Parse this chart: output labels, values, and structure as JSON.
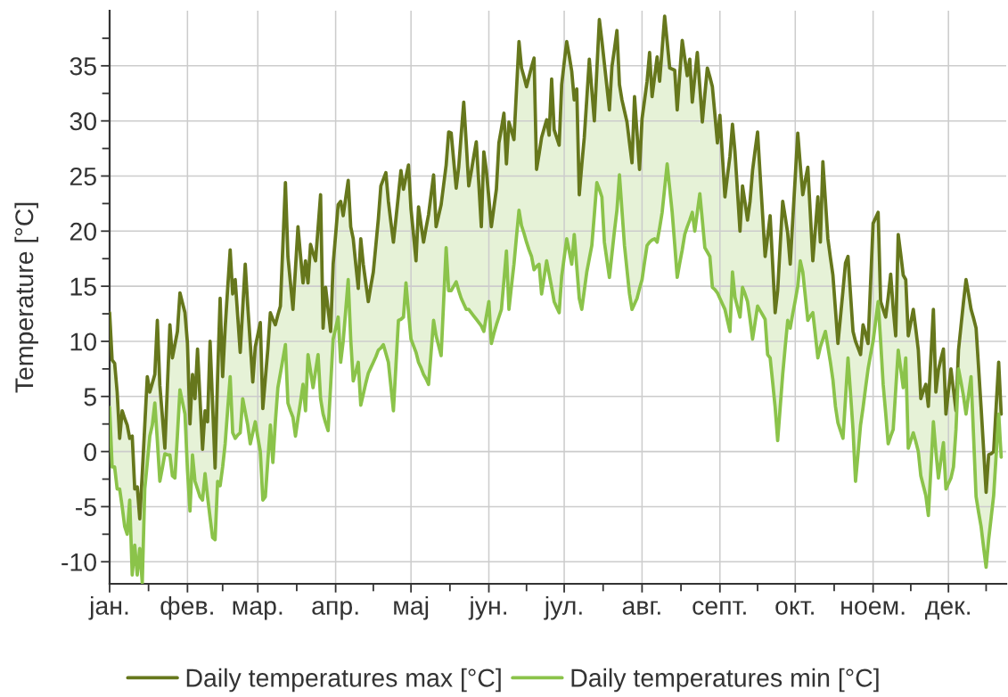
{
  "chart_data": {
    "type": "line",
    "ylabel": "Temperature [°C]",
    "legend": "bottom",
    "grid": true,
    "line_style": "solid",
    "ylim": [
      -12,
      40
    ],
    "yticks": [
      -10,
      {
        "value": -7.5,
        "label": null
      },
      -5,
      {
        "value": -2.5,
        "label": null
      },
      0,
      {
        "value": 2.5,
        "label": null
      },
      5,
      {
        "value": 7.5,
        "label": null
      },
      10,
      {
        "value": 12.5,
        "label": null
      },
      15,
      {
        "value": 17.5,
        "label": null
      },
      20,
      {
        "value": 22.5,
        "label": null
      },
      25,
      {
        "value": 27.5,
        "label": null
      },
      30,
      {
        "value": 32.5,
        "label": null
      },
      35,
      {
        "value": 37.5,
        "label": null
      }
    ],
    "categories": [
      "јан.",
      null,
      null,
      null,
      null,
      null,
      null,
      null,
      null,
      null,
      null,
      null,
      null,
      null,
      null,
      null,
      null,
      null,
      null,
      null,
      null,
      null,
      null,
      null,
      null,
      null,
      null,
      null,
      null,
      null,
      null,
      "фев.",
      null,
      null,
      null,
      null,
      null,
      null,
      null,
      null,
      null,
      null,
      null,
      null,
      null,
      null,
      null,
      null,
      null,
      null,
      null,
      null,
      null,
      null,
      null,
      null,
      null,
      null,
      null,
      "мар.",
      null,
      null,
      null,
      null,
      null,
      null,
      null,
      null,
      null,
      null,
      null,
      null,
      null,
      null,
      null,
      null,
      null,
      null,
      null,
      null,
      null,
      null,
      null,
      null,
      null,
      null,
      null,
      null,
      null,
      null,
      "апр.",
      null,
      null,
      null,
      null,
      null,
      null,
      null,
      null,
      null,
      null,
      null,
      null,
      null,
      null,
      null,
      null,
      null,
      null,
      null,
      null,
      null,
      null,
      null,
      null,
      null,
      null,
      null,
      null,
      null,
      "мај",
      null,
      null,
      null,
      null,
      null,
      null,
      null,
      null,
      null,
      null,
      null,
      null,
      null,
      null,
      null,
      null,
      null,
      null,
      null,
      null,
      null,
      null,
      null,
      null,
      null,
      null,
      null,
      null,
      null,
      null,
      "јун.",
      null,
      null,
      null,
      null,
      null,
      null,
      null,
      null,
      null,
      null,
      null,
      null,
      null,
      null,
      null,
      null,
      null,
      null,
      null,
      null,
      null,
      null,
      null,
      null,
      null,
      null,
      null,
      null,
      null,
      "јул.",
      null,
      null,
      null,
      null,
      null,
      null,
      null,
      null,
      null,
      null,
      null,
      null,
      null,
      null,
      null,
      null,
      null,
      null,
      null,
      null,
      null,
      null,
      null,
      null,
      null,
      null,
      null,
      null,
      null,
      null,
      "авг.",
      null,
      null,
      null,
      null,
      null,
      null,
      null,
      null,
      null,
      null,
      null,
      null,
      null,
      null,
      null,
      null,
      null,
      null,
      null,
      null,
      null,
      null,
      null,
      null,
      null,
      null,
      null,
      null,
      null,
      null,
      "септ.",
      null,
      null,
      null,
      null,
      null,
      null,
      null,
      null,
      null,
      null,
      null,
      null,
      null,
      null,
      null,
      null,
      null,
      null,
      null,
      null,
      null,
      null,
      null,
      null,
      null,
      null,
      null,
      null,
      null,
      "окт.",
      null,
      null,
      null,
      null,
      null,
      null,
      null,
      null,
      null,
      null,
      null,
      null,
      null,
      null,
      null,
      null,
      null,
      null,
      null,
      null,
      null,
      null,
      null,
      null,
      null,
      null,
      null,
      null,
      null,
      null,
      "ноем.",
      null,
      null,
      null,
      null,
      null,
      null,
      null,
      null,
      null,
      null,
      null,
      null,
      null,
      null,
      null,
      null,
      null,
      null,
      null,
      null,
      null,
      null,
      null,
      null,
      null,
      null,
      null,
      null,
      null,
      "дек.",
      null,
      null,
      null,
      null,
      null,
      null,
      null,
      null,
      null,
      null,
      null,
      null,
      null,
      null,
      null,
      null,
      null,
      null,
      null,
      null,
      null
    ],
    "series": [
      {
        "name": "Daily temperatures max [°C]",
        "color": "#66771c",
        "values": [
          12.6,
          8.3,
          8.0,
          5.4,
          1.2,
          3.7,
          3.0,
          2.4,
          1.2,
          1.4,
          -3.4,
          -3.2,
          -6.1,
          -2.0,
          2.4,
          6.8,
          5.4,
          6.2,
          7.0,
          11.9,
          6.0,
          3.2,
          0.3,
          5.9,
          11.5,
          8.5,
          9.7,
          10.9,
          14.4,
          13.5,
          12.6,
          9.8,
          2.5,
          7.0,
          4.8,
          9.3,
          4.7,
          0.2,
          3.7,
          2.7,
          10.0,
          4.3,
          -1.5,
          6.8,
          13.9,
          6.8,
          11.2,
          14.8,
          18.3,
          14.3,
          15.6,
          12.3,
          9.0,
          13.0,
          17.0,
          13.2,
          9.8,
          6.3,
          9.5,
          10.6,
          11.7,
          3.9,
          6.6,
          9.3,
          12.6,
          12.0,
          11.5,
          12.4,
          13.2,
          18.8,
          24.4,
          17.7,
          15.3,
          12.9,
          16.6,
          20.4,
          17.8,
          15.3,
          17.3,
          15.3,
          18.8,
          18.0,
          17.3,
          20.3,
          23.3,
          11.2,
          14.9,
          12.9,
          10.9,
          17.0,
          19.7,
          22.4,
          22.7,
          21.4,
          23.0,
          24.6,
          20.4,
          19.3,
          17.0,
          14.8,
          19.3,
          17.0,
          15.3,
          13.6,
          15.0,
          16.3,
          18.7,
          21.1,
          24.1,
          24.7,
          25.3,
          22.7,
          20.8,
          19.0,
          21.1,
          23.3,
          25.5,
          23.8,
          24.9,
          26.0,
          22.0,
          19.7,
          17.3,
          22.2,
          20.6,
          19.0,
          20.3,
          21.5,
          23.3,
          25.1,
          20.4,
          21.4,
          22.4,
          24.2,
          26.0,
          29.0,
          28.9,
          26.4,
          23.9,
          25.8,
          28.8,
          31.7,
          28.0,
          24.1,
          25.4,
          26.8,
          28.1,
          24.3,
          20.4,
          27.2,
          25.5,
          23.0,
          20.4,
          22.1,
          23.8,
          28.0,
          29.3,
          30.7,
          26.1,
          29.9,
          29.1,
          28.3,
          32.8,
          37.2,
          34.8,
          34.0,
          33.1,
          34.0,
          34.9,
          35.7,
          25.6,
          27.0,
          28.5,
          29.3,
          30.1,
          28.7,
          33.8,
          29.2,
          28.5,
          27.8,
          33.3,
          35.3,
          37.2,
          35.9,
          34.5,
          31.9,
          32.9,
          23.3,
          26.0,
          28.5,
          32.0,
          35.6,
          32.8,
          30.0,
          34.6,
          39.2,
          37.3,
          35.2,
          33.1,
          31.0,
          34.9,
          36.5,
          38.2,
          33.3,
          31.9,
          30.9,
          29.9,
          28.0,
          26.2,
          32.2,
          28.9,
          25.6,
          30.2,
          31.9,
          33.6,
          36.2,
          32.2,
          34.0,
          35.8,
          33.6,
          36.5,
          39.5,
          37.2,
          34.8,
          34.7,
          34.6,
          31.0,
          34.2,
          37.3,
          35.7,
          34.1,
          35.6,
          31.7,
          34.0,
          36.2,
          33.1,
          29.9,
          32.4,
          34.8,
          34.0,
          33.1,
          30.6,
          28.0,
          30.5,
          26.8,
          23.1,
          25.0,
          26.8,
          29.7,
          27.2,
          23.6,
          20.0,
          24.1,
          22.6,
          21.0,
          22.7,
          25.5,
          27.3,
          29.0,
          25.2,
          21.5,
          17.7,
          19.5,
          21.4,
          17.0,
          12.6,
          14.6,
          18.7,
          22.7,
          21.3,
          19.8,
          17.0,
          21.0,
          24.9,
          28.9,
          26.0,
          23.3,
          24.6,
          25.8,
          21.6,
          17.3,
          20.2,
          23.1,
          19.0,
          26.3,
          22.8,
          19.3,
          17.6,
          16.0,
          12.9,
          9.8,
          12.2,
          14.6,
          17.1,
          17.7,
          14.3,
          10.9,
          10.0,
          9.4,
          8.8,
          11.5,
          10.7,
          9.8,
          15.3,
          20.7,
          21.2,
          21.7,
          13.6,
          12.9,
          12.2,
          14.0,
          16.1,
          13.0,
          10.5,
          19.7,
          17.9,
          16.0,
          15.6,
          10.5,
          11.7,
          12.9,
          11.1,
          9.2,
          4.8,
          5.5,
          6.1,
          4.1,
          8.5,
          12.9,
          5.4,
          7.4,
          8.4,
          9.3,
          3.4,
          5.5,
          7.5,
          5.6,
          3.7,
          9.2,
          11.4,
          13.6,
          15.6,
          14.3,
          12.9,
          12.1,
          11.2,
          7.6,
          4.0,
          0.2,
          -3.7,
          -0.3,
          -0.2,
          0.0,
          4.1,
          8.1,
          3.4
        ]
      },
      {
        "name": "Daily temperatures min [°C]",
        "color": "#8bc34a",
        "values": [
          4.0,
          -1.4,
          -1.4,
          -3.4,
          -3.4,
          -5.0,
          -6.8,
          -7.5,
          -4.4,
          -11.2,
          -8.5,
          -11.2,
          -8.8,
          -11.9,
          -3.4,
          -1.0,
          1.4,
          2.4,
          4.4,
          1.0,
          -2.7,
          -1.5,
          -0.2,
          -0.3,
          -0.3,
          -2.2,
          -2.4,
          1.5,
          5.6,
          4.5,
          3.4,
          -1.7,
          -5.4,
          -0.3,
          -2.7,
          -3.4,
          -4.1,
          -4.4,
          -2.0,
          -4.1,
          -6.0,
          -7.8,
          -8.0,
          -2.7,
          -3.1,
          -1.4,
          0.7,
          3.8,
          6.8,
          1.7,
          1.2,
          1.5,
          1.7,
          4.8,
          3.6,
          2.4,
          0.7,
          1.7,
          2.7,
          1.3,
          0.0,
          -4.4,
          -4.1,
          -0.8,
          2.4,
          -1.0,
          2.7,
          5.8,
          7.1,
          8.4,
          9.7,
          4.4,
          3.7,
          3.1,
          1.4,
          3.0,
          4.5,
          6.1,
          3.7,
          8.8,
          7.3,
          5.8,
          7.3,
          8.8,
          4.8,
          3.4,
          2.6,
          1.9,
          6.0,
          10.2,
          11.2,
          12.2,
          8.1,
          10.0,
          12.8,
          15.6,
          10.2,
          6.4,
          7.2,
          8.1,
          4.2,
          5.2,
          6.2,
          7.1,
          7.6,
          8.1,
          8.6,
          9.2,
          9.4,
          9.7,
          8.9,
          8.1,
          5.9,
          3.7,
          7.8,
          11.9,
          12.0,
          12.2,
          15.3,
          12.7,
          10.2,
          9.6,
          9.0,
          8.1,
          7.6,
          7.0,
          6.6,
          6.1,
          9.0,
          11.9,
          10.5,
          9.6,
          8.7,
          13.6,
          18.5,
          14.6,
          14.6,
          15.0,
          15.4,
          14.6,
          13.9,
          13.4,
          12.9,
          12.9,
          12.6,
          12.3,
          12.0,
          11.7,
          11.4,
          10.9,
          12.3,
          13.6,
          9.8,
          10.7,
          11.5,
          12.2,
          12.9,
          15.5,
          18.2,
          12.9,
          15.0,
          17.0,
          19.5,
          21.9,
          20.5,
          19.8,
          19.0,
          18.3,
          17.7,
          16.5,
          16.8,
          17.0,
          14.3,
          15.8,
          17.3,
          16.1,
          14.9,
          13.6,
          13.1,
          12.6,
          15.9,
          17.6,
          19.3,
          18.2,
          17.0,
          19.7,
          16.8,
          13.9,
          12.9,
          14.6,
          16.3,
          17.5,
          18.7,
          21.5,
          24.4,
          23.8,
          23.1,
          19.0,
          17.4,
          15.8,
          17.9,
          20.0,
          21.9,
          25.1,
          21.9,
          18.7,
          16.5,
          14.3,
          12.9,
          13.4,
          13.9,
          14.8,
          15.6,
          17.2,
          18.7,
          19.0,
          19.2,
          19.3,
          19.0,
          20.3,
          21.7,
          23.9,
          26.1,
          23.9,
          21.7,
          18.8,
          15.8,
          17.1,
          18.3,
          19.7,
          20.4,
          21.0,
          21.7,
          20.0,
          21.7,
          23.4,
          21.0,
          18.5,
          18.1,
          17.7,
          14.9,
          14.7,
          14.4,
          13.9,
          13.4,
          12.9,
          11.9,
          10.9,
          16.3,
          14.0,
          13.1,
          12.2,
          14.9,
          14.3,
          13.6,
          12.0,
          10.2,
          11.7,
          13.2,
          12.8,
          12.4,
          12.0,
          8.8,
          8.5,
          6.3,
          4.0,
          1.0,
          4.0,
          7.0,
          9.5,
          11.9,
          11.2,
          12.5,
          13.7,
          15.0,
          17.3,
          16.3,
          14.1,
          11.9,
          12.3,
          12.6,
          10.6,
          8.5,
          9.5,
          10.2,
          10.9,
          9.5,
          8.1,
          6.5,
          4.1,
          2.6,
          1.9,
          1.2,
          4.8,
          8.5,
          5.3,
          2.0,
          -2.7,
          -0.2,
          2.4,
          4.0,
          5.8,
          7.5,
          8.8,
          10.0,
          11.8,
          13.6,
          10.0,
          6.1,
          3.5,
          0.7,
          1.4,
          2.0,
          5.6,
          9.2,
          7.5,
          5.8,
          8.5,
          0.3,
          1.0,
          1.7,
          0.9,
          0.0,
          -2.2,
          -3.1,
          -4.0,
          -5.8,
          -1.6,
          2.7,
          0.0,
          -2.4,
          -0.8,
          0.8,
          -3.4,
          -2.9,
          -2.4,
          -1.4,
          2.0,
          7.5,
          6.3,
          5.0,
          3.4,
          5.1,
          6.8,
          1.4,
          -4.1,
          -5.5,
          -6.8,
          -8.7,
          -10.5,
          -8.0,
          -6.0,
          -4.0,
          -0.3,
          3.4,
          -0.5
        ],
        "lower": [
          4.0,
          -1.4,
          -1.4,
          -3.4,
          -3.4,
          -5.0,
          -6.8,
          -7.5,
          -4.4,
          -11.2,
          -8.5,
          -11.2,
          -8.8,
          -11.9,
          -3.4,
          -1.0,
          1.4,
          2.4,
          4.4,
          1.0,
          -2.7,
          -1.5,
          -0.2,
          -0.3,
          -0.3,
          -2.2,
          -2.4,
          1.5,
          5.6,
          4.5,
          3.4,
          -1.7,
          -5.4,
          -0.3,
          -2.7,
          -3.4,
          -4.1,
          -4.4,
          -2.0,
          -4.1,
          -6.0,
          -7.8,
          -8.0,
          -2.7,
          -3.1,
          -1.4,
          0.7,
          3.8,
          6.8,
          1.7,
          1.2,
          1.5,
          1.7,
          4.8,
          3.6,
          2.4,
          0.7,
          1.7,
          2.7,
          1.3,
          0.0,
          -4.4,
          -4.1,
          -0.8,
          2.4,
          -1.0,
          2.7,
          5.8,
          7.1,
          8.4,
          9.7,
          4.4,
          3.7,
          3.1,
          1.4,
          3.0,
          4.5,
          6.1,
          3.7,
          8.8,
          7.3,
          5.8,
          7.3,
          8.8,
          4.8,
          3.4,
          2.6,
          1.9,
          6.0,
          10.2,
          11.2,
          12.2,
          8.1,
          10.0,
          12.8,
          15.6,
          10.2,
          6.4,
          7.2,
          8.1,
          4.2,
          5.2,
          6.2,
          7.1,
          7.6,
          8.1,
          8.6,
          9.2,
          9.4,
          9.7,
          8.9,
          8.1,
          5.9,
          3.7,
          7.8,
          11.9,
          12.0,
          12.2,
          15.3,
          12.7,
          10.2,
          9.6,
          9.0,
          8.1,
          7.6,
          7.0,
          6.6,
          6.1,
          9.0,
          11.9,
          10.5,
          9.6,
          8.7,
          13.6,
          18.5,
          14.6,
          14.6,
          15.0,
          15.4,
          14.6,
          13.9,
          13.4,
          12.9,
          12.9,
          12.6,
          12.3,
          12.0,
          11.7,
          11.4,
          10.9,
          12.3,
          13.6,
          9.8,
          10.7,
          11.5,
          12.2,
          12.9,
          15.5,
          18.2,
          12.9,
          15.0,
          17.0,
          19.5,
          21.9,
          20.5,
          19.8,
          19.0,
          18.3,
          17.7,
          16.5,
          16.8,
          17.0,
          14.3,
          15.8,
          17.3,
          16.1,
          14.9,
          13.6,
          13.1,
          12.6,
          15.9,
          17.6,
          19.3,
          18.2,
          17.0,
          19.7,
          16.8,
          13.9,
          12.9,
          14.6,
          16.3,
          17.5,
          18.7,
          21.5,
          24.4,
          23.8,
          23.1,
          19.0,
          17.4,
          15.8,
          17.9,
          20.0,
          21.9,
          25.1,
          21.9,
          18.7,
          16.5,
          14.3,
          12.9,
          13.4,
          13.9,
          14.8,
          15.6,
          17.2,
          18.7,
          19.0,
          19.2,
          19.3,
          19.0,
          20.3,
          21.7,
          23.9,
          26.1,
          23.9,
          21.7,
          18.8,
          15.8,
          17.1,
          18.3,
          19.7,
          20.4,
          21.0,
          21.7,
          20.0,
          21.7,
          23.4,
          21.0,
          18.5,
          18.1,
          17.7,
          14.9,
          14.7,
          14.4,
          13.9,
          13.4,
          12.9,
          11.9,
          10.9,
          16.3,
          14.0,
          13.1,
          12.2,
          14.9,
          14.3,
          13.6,
          12.0,
          10.2,
          11.7,
          13.2,
          12.8,
          12.4,
          12.0,
          8.8,
          8.5,
          6.3,
          4.0,
          1.0,
          4.0,
          7.0,
          9.5,
          11.9,
          11.2,
          12.5,
          13.7,
          15.0,
          17.3,
          16.3,
          14.1,
          11.9,
          12.3,
          12.6,
          10.6,
          8.5,
          9.5,
          10.2,
          10.9,
          9.5,
          8.1,
          6.5,
          4.1,
          2.6,
          1.9,
          1.2,
          4.8,
          8.5,
          5.3,
          2.0,
          -2.7,
          -0.2,
          2.4,
          4.0,
          5.8,
          7.5,
          8.8,
          10.0,
          11.8,
          13.6,
          10.0,
          6.1,
          3.5,
          0.7,
          1.4,
          2.0,
          5.6,
          9.2,
          7.5,
          5.8,
          8.5,
          0.3,
          1.0,
          1.7,
          0.9,
          0.0,
          -2.2,
          -3.1,
          -4.0,
          -5.8,
          -1.6,
          2.7,
          0.0,
          -2.4,
          -0.8,
          0.8,
          -3.4,
          -2.9,
          -2.4,
          -1.4,
          2.0,
          7.5,
          6.3,
          5.0,
          3.4,
          5.1,
          6.8,
          1.4,
          -4.1,
          -5.5,
          -6.8,
          -8.7,
          -10.5,
          -8.0,
          -6.0,
          -4.0,
          -0.3,
          3.4,
          -0.5
        ],
        "upper": [
          12.6,
          8.3,
          8.0,
          5.4,
          1.2,
          3.7,
          3.0,
          2.4,
          1.2,
          1.4,
          -3.4,
          -3.2,
          -6.1,
          -2.0,
          2.4,
          6.8,
          5.4,
          6.2,
          7.0,
          11.9,
          6.0,
          3.2,
          0.3,
          5.9,
          11.5,
          8.5,
          9.7,
          10.9,
          14.4,
          13.5,
          12.6,
          9.8,
          2.5,
          7.0,
          4.8,
          9.3,
          4.7,
          0.2,
          3.7,
          2.7,
          10.0,
          4.3,
          -1.5,
          6.8,
          13.9,
          6.8,
          11.2,
          14.8,
          18.3,
          14.3,
          15.6,
          12.3,
          9.0,
          13.0,
          17.0,
          13.2,
          9.8,
          6.3,
          9.5,
          10.6,
          11.7,
          3.9,
          6.6,
          9.3,
          12.6,
          12.0,
          11.5,
          12.4,
          13.2,
          18.8,
          24.4,
          17.7,
          15.3,
          12.9,
          16.6,
          20.4,
          17.8,
          15.3,
          17.3,
          15.3,
          18.8,
          18.0,
          17.3,
          20.3,
          23.3,
          11.2,
          14.9,
          12.9,
          10.9,
          17.0,
          19.7,
          22.4,
          22.7,
          21.4,
          23.0,
          24.6,
          20.4,
          19.3,
          17.0,
          14.8,
          19.3,
          17.0,
          15.3,
          13.6,
          15.0,
          16.3,
          18.7,
          21.1,
          24.1,
          24.7,
          25.3,
          22.7,
          20.8,
          19.0,
          21.1,
          23.3,
          25.5,
          23.8,
          24.9,
          26.0,
          22.0,
          19.7,
          17.3,
          22.2,
          20.6,
          19.0,
          20.3,
          21.5,
          23.3,
          25.1,
          20.4,
          21.4,
          22.4,
          24.2,
          26.0,
          29.0,
          28.9,
          26.4,
          23.9,
          25.8,
          28.8,
          31.7,
          28.0,
          24.1,
          25.4,
          26.8,
          28.1,
          24.3,
          20.4,
          27.2,
          25.5,
          23.0,
          20.4,
          22.1,
          23.8,
          28.0,
          29.3,
          30.7,
          26.1,
          29.9,
          29.1,
          28.3,
          32.8,
          37.2,
          34.8,
          34.0,
          33.1,
          34.0,
          34.9,
          35.7,
          25.6,
          27.0,
          28.5,
          29.3,
          30.1,
          28.7,
          33.8,
          29.2,
          28.5,
          27.8,
          33.3,
          35.3,
          37.2,
          35.9,
          34.5,
          31.9,
          32.9,
          23.3,
          26.0,
          28.5,
          32.0,
          35.6,
          32.8,
          30.0,
          34.6,
          39.2,
          37.3,
          35.2,
          33.1,
          31.0,
          34.9,
          36.5,
          38.2,
          33.3,
          31.9,
          30.9,
          29.9,
          28.0,
          26.2,
          32.2,
          28.9,
          25.6,
          30.2,
          31.9,
          33.6,
          36.2,
          32.2,
          34.0,
          35.8,
          33.6,
          36.5,
          39.5,
          37.2,
          34.8,
          34.7,
          34.6,
          31.0,
          34.2,
          37.3,
          35.7,
          34.1,
          35.6,
          31.7,
          34.0,
          36.2,
          33.1,
          29.9,
          32.4,
          34.8,
          34.0,
          33.1,
          30.6,
          28.0,
          30.5,
          26.8,
          23.1,
          25.0,
          26.8,
          29.7,
          27.2,
          23.6,
          20.0,
          24.1,
          22.6,
          21.0,
          22.7,
          25.5,
          27.3,
          29.0,
          25.2,
          21.5,
          17.7,
          19.5,
          21.4,
          17.0,
          12.6,
          14.6,
          18.7,
          22.7,
          21.3,
          19.8,
          17.0,
          21.0,
          24.9,
          28.9,
          26.0,
          23.3,
          24.6,
          25.8,
          21.6,
          17.3,
          20.2,
          23.1,
          19.0,
          26.3,
          22.8,
          19.3,
          17.6,
          16.0,
          12.9,
          9.8,
          12.2,
          14.6,
          17.1,
          17.7,
          14.3,
          10.9,
          10.0,
          9.4,
          8.8,
          11.5,
          10.7,
          9.8,
          15.3,
          20.7,
          21.2,
          21.7,
          13.6,
          12.9,
          12.2,
          14.0,
          16.1,
          13.0,
          10.5,
          19.7,
          17.9,
          16.0,
          15.6,
          10.5,
          11.7,
          12.9,
          11.1,
          9.2,
          4.8,
          5.5,
          6.1,
          4.1,
          8.5,
          12.9,
          5.4,
          7.4,
          8.4,
          9.3,
          3.4,
          5.5,
          7.5,
          5.6,
          3.7,
          9.2,
          11.4,
          13.6,
          15.6,
          14.3,
          12.9,
          12.1,
          11.2,
          7.6,
          4.0,
          0.2,
          -3.7,
          -0.3,
          -0.2,
          0.0,
          4.1,
          8.1,
          3.4
        ]
      }
    ]
  }
}
